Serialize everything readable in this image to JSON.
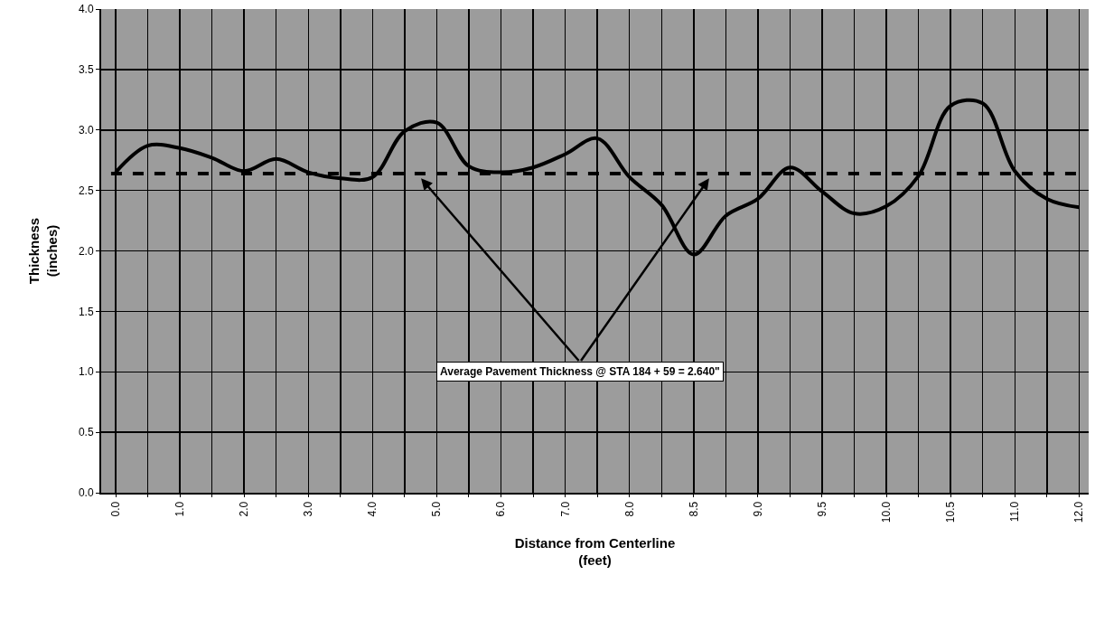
{
  "chart_data": {
    "type": "line",
    "xlabel": "Distance from Centerline\n(feet)",
    "ylabel": "Thickness\n(inches)",
    "categories": [
      "0.0",
      null,
      "1.0",
      null,
      "2.0",
      null,
      "3.0",
      null,
      "4.0",
      null,
      "5.0",
      null,
      "6.0",
      null,
      "7.0",
      null,
      "8.0",
      null,
      "8.5",
      null,
      "9.0",
      null,
      "9.5",
      null,
      "10.0",
      null,
      "10.5",
      null,
      "11.0",
      null,
      "12.0"
    ],
    "series": [
      {
        "color": "#000000",
        "values": [
          2.65,
          2.87,
          2.85,
          2.77,
          2.66,
          2.76,
          2.65,
          2.6,
          2.61,
          2.99,
          3.06,
          2.7,
          2.65,
          2.69,
          2.8,
          2.93,
          2.61,
          2.38,
          1.97,
          2.29,
          2.43,
          2.69,
          2.49,
          2.31,
          2.37,
          2.62,
          3.2,
          3.22,
          2.66,
          2.43,
          2.36
        ]
      }
    ],
    "ylim": [
      0,
      4
    ],
    "yticks": [
      {
        "value": 0,
        "label": "0.0"
      },
      {
        "value": 0.5,
        "label": "0.5"
      },
      {
        "value": 1,
        "label": "1.0"
      },
      {
        "value": 1.5,
        "label": "1.5"
      },
      {
        "value": 2,
        "label": "2.0"
      },
      {
        "value": 2.5,
        "label": "2.5"
      },
      {
        "value": 3,
        "label": "3.0"
      },
      {
        "value": 3.5,
        "label": "3.5"
      },
      {
        "value": 4,
        "label": "4.0"
      }
    ],
    "ref_lines": [
      {
        "axis": "y",
        "value": 2.64,
        "color": "#000000",
        "line_style": "dashed"
      }
    ],
    "annotations": [
      "Average Pavement Thickness @ STA 184 + 59 = 2.640\""
    ],
    "grid": true,
    "marker": "none",
    "line_style": "solid"
  }
}
